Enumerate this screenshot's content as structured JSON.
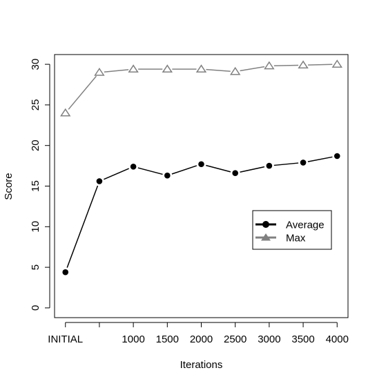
{
  "chart_data": {
    "type": "line",
    "title": "",
    "xlabel": "Iterations",
    "ylabel": "Score",
    "x": [
      0,
      500,
      1000,
      1500,
      2000,
      2500,
      3000,
      3500,
      4000
    ],
    "x_tick_values": [
      0,
      500,
      1000,
      1500,
      2000,
      2500,
      3000,
      3500,
      4000
    ],
    "x_tick_labels": [
      "INITIAL",
      "",
      "1000",
      "1500",
      "2000",
      "2500",
      "3000",
      "3500",
      "4000"
    ],
    "y_ticks": [
      0,
      5,
      10,
      15,
      20,
      25,
      30
    ],
    "y_tick_labels": [
      "0",
      "5",
      "10",
      "15",
      "20",
      "25",
      "30"
    ],
    "xlim": [
      -160,
      4160
    ],
    "ylim": [
      -1.2,
      31.2
    ],
    "grid": false,
    "legend_position": "right",
    "series": [
      {
        "name": "Average",
        "color": "#000000",
        "marker": "filled-circle",
        "values": [
          4.4,
          15.6,
          17.4,
          16.3,
          17.7,
          16.6,
          17.5,
          17.9,
          18.7
        ]
      },
      {
        "name": "Max",
        "color": "#808080",
        "marker": "open-triangle",
        "values": [
          24.0,
          29.0,
          29.4,
          29.4,
          29.4,
          29.1,
          29.8,
          29.9,
          30.0
        ]
      }
    ]
  }
}
